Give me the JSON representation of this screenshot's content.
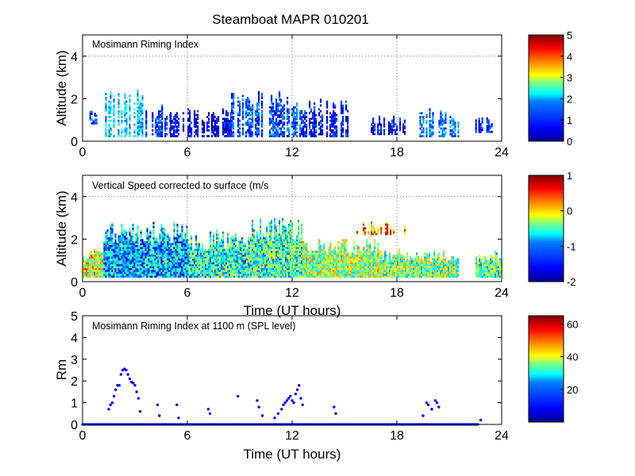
{
  "figure_title": "Steamboat MAPR 010201",
  "colormap": [
    "#00008f",
    "#0000ff",
    "#0080ff",
    "#00ffff",
    "#80ff80",
    "#ffff00",
    "#ff8000",
    "#ff0000",
    "#800000"
  ],
  "colors": {
    "scatter_marker": "#0000ff",
    "gridline": "#6e6e6e",
    "background": "#ffffff"
  },
  "chart_data": [
    {
      "id": "riming_index_profile",
      "type": "heatmap",
      "annotation": "Mosimann Riming Index",
      "xlabel": "",
      "ylabel": "Altitude (km)",
      "xlim": [
        0,
        24
      ],
      "ylim": [
        0,
        5
      ],
      "xticks": [
        "0",
        "6",
        "12",
        "18",
        "24"
      ],
      "yticks": [
        "0",
        "2",
        "4"
      ],
      "colorbar": {
        "min": 0,
        "max": 5,
        "ticks": [
          "0",
          "1",
          "2",
          "3",
          "4",
          "5"
        ]
      },
      "value_bounds": [
        0,
        2.5
      ],
      "echo_segments": [
        {
          "t0": 0.3,
          "t1": 0.9,
          "bottom": 0.8,
          "top": 1.6,
          "value": 0.9
        },
        {
          "t0": 1.2,
          "t1": 3.6,
          "bottom": 0.2,
          "top": 2.5,
          "value": 1.6
        },
        {
          "t0": 3.6,
          "t1": 5.0,
          "bottom": 0.2,
          "top": 1.7,
          "value": 0.8
        },
        {
          "t0": 5.0,
          "t1": 8.5,
          "bottom": 0.2,
          "top": 1.5,
          "value": 0.5
        },
        {
          "t0": 8.5,
          "t1": 12.5,
          "bottom": 0.2,
          "top": 2.4,
          "value": 1.0
        },
        {
          "t0": 12.5,
          "t1": 15.2,
          "bottom": 0.2,
          "top": 2.0,
          "value": 0.7
        },
        {
          "t0": 16.5,
          "t1": 18.5,
          "bottom": 0.3,
          "top": 1.2,
          "value": 0.6
        },
        {
          "t0": 19.2,
          "t1": 21.5,
          "bottom": 0.2,
          "top": 1.5,
          "value": 1.2
        },
        {
          "t0": 22.3,
          "t1": 23.5,
          "bottom": 0.4,
          "top": 1.2,
          "value": 0.8
        }
      ]
    },
    {
      "id": "vertical_speed_profile",
      "type": "heatmap",
      "annotation": "Vertical Speed corrected to surface (m/s",
      "xlabel": "Time (UT hours)",
      "ylabel": "Altitude (km)",
      "xlim": [
        0,
        24
      ],
      "ylim": [
        0,
        5
      ],
      "xticks": [
        "0",
        "6",
        "12",
        "18",
        "24"
      ],
      "yticks": [
        "0",
        "2",
        "4"
      ],
      "colorbar": {
        "min": -2,
        "max": 1,
        "ticks": [
          "1",
          "0",
          "-1",
          "-2"
        ]
      },
      "value_bounds": [
        -2,
        1
      ],
      "echo_segments": [
        {
          "t0": 0.0,
          "t1": 1.2,
          "bottom": 0.2,
          "top": 1.6,
          "value": -0.2
        },
        {
          "t0": 1.2,
          "t1": 6.0,
          "bottom": 0.2,
          "top": 2.8,
          "value": -1.1
        },
        {
          "t0": 6.0,
          "t1": 9.5,
          "bottom": 0.2,
          "top": 2.4,
          "value": -0.8
        },
        {
          "t0": 9.5,
          "t1": 12.6,
          "bottom": 0.2,
          "top": 3.0,
          "value": -0.7
        },
        {
          "t0": 12.6,
          "t1": 17.0,
          "bottom": 0.2,
          "top": 2.0,
          "value": -0.4
        },
        {
          "t0": 17.0,
          "t1": 21.5,
          "bottom": 0.2,
          "top": 1.5,
          "value": -0.5
        },
        {
          "t0": 15.5,
          "t1": 18.5,
          "bottom": 2.2,
          "top": 2.8,
          "value": 0.2
        },
        {
          "t0": 22.5,
          "t1": 24.0,
          "bottom": 0.2,
          "top": 1.4,
          "value": -0.6
        }
      ]
    },
    {
      "id": "riming_index_spl",
      "type": "scatter",
      "annotation": "Mosimann Riming Index at 1100 m (SPL level)",
      "xlabel": "Time (UT hours)",
      "ylabel": "Rm",
      "xlim": [
        0,
        24
      ],
      "ylim": [
        0,
        5
      ],
      "xticks": [
        "0",
        "6",
        "12",
        "18",
        "24"
      ],
      "yticks": [
        "0",
        "1",
        "2",
        "3",
        "4",
        "5"
      ],
      "colorbar": {
        "min": 0,
        "max": 65,
        "ticks": [
          "60",
          "40",
          "20"
        ]
      },
      "zero_baseline_spans": [
        [
          0.0,
          22.7
        ]
      ],
      "points": [
        {
          "x": 1.5,
          "y": 0.7
        },
        {
          "x": 1.6,
          "y": 0.9
        },
        {
          "x": 1.7,
          "y": 1.0
        },
        {
          "x": 1.8,
          "y": 1.3
        },
        {
          "x": 1.9,
          "y": 1.6
        },
        {
          "x": 2.0,
          "y": 1.8
        },
        {
          "x": 2.1,
          "y": 1.8
        },
        {
          "x": 2.2,
          "y": 2.3
        },
        {
          "x": 2.3,
          "y": 2.5
        },
        {
          "x": 2.4,
          "y": 2.55
        },
        {
          "x": 2.5,
          "y": 2.5
        },
        {
          "x": 2.6,
          "y": 2.3
        },
        {
          "x": 2.7,
          "y": 2.1
        },
        {
          "x": 2.8,
          "y": 1.95
        },
        {
          "x": 2.9,
          "y": 1.9
        },
        {
          "x": 3.0,
          "y": 1.8
        },
        {
          "x": 3.1,
          "y": 1.5
        },
        {
          "x": 3.2,
          "y": 1.2
        },
        {
          "x": 3.3,
          "y": 0.6
        },
        {
          "x": 4.3,
          "y": 0.9
        },
        {
          "x": 4.4,
          "y": 0.4
        },
        {
          "x": 5.4,
          "y": 0.9
        },
        {
          "x": 5.5,
          "y": 0.3
        },
        {
          "x": 7.2,
          "y": 0.7
        },
        {
          "x": 7.3,
          "y": 0.5
        },
        {
          "x": 8.9,
          "y": 1.3
        },
        {
          "x": 10.0,
          "y": 1.1
        },
        {
          "x": 10.1,
          "y": 0.8
        },
        {
          "x": 10.3,
          "y": 0.4
        },
        {
          "x": 11.0,
          "y": 0.3
        },
        {
          "x": 11.2,
          "y": 0.5
        },
        {
          "x": 11.4,
          "y": 0.7
        },
        {
          "x": 11.5,
          "y": 0.9
        },
        {
          "x": 11.6,
          "y": 1.0
        },
        {
          "x": 11.7,
          "y": 1.1
        },
        {
          "x": 11.8,
          "y": 1.2
        },
        {
          "x": 11.9,
          "y": 1.3
        },
        {
          "x": 12.0,
          "y": 1.1
        },
        {
          "x": 12.1,
          "y": 1.0
        },
        {
          "x": 12.2,
          "y": 1.4
        },
        {
          "x": 12.3,
          "y": 1.6
        },
        {
          "x": 12.4,
          "y": 1.8
        },
        {
          "x": 12.5,
          "y": 1.2
        },
        {
          "x": 12.6,
          "y": 0.9
        },
        {
          "x": 14.4,
          "y": 0.8
        },
        {
          "x": 14.5,
          "y": 0.5
        },
        {
          "x": 19.5,
          "y": 0.4
        },
        {
          "x": 19.7,
          "y": 1.0
        },
        {
          "x": 19.8,
          "y": 0.9
        },
        {
          "x": 20.0,
          "y": 0.7
        },
        {
          "x": 20.2,
          "y": 1.1
        },
        {
          "x": 20.3,
          "y": 1.0
        },
        {
          "x": 20.4,
          "y": 0.8
        },
        {
          "x": 22.8,
          "y": 0.2
        }
      ]
    }
  ]
}
